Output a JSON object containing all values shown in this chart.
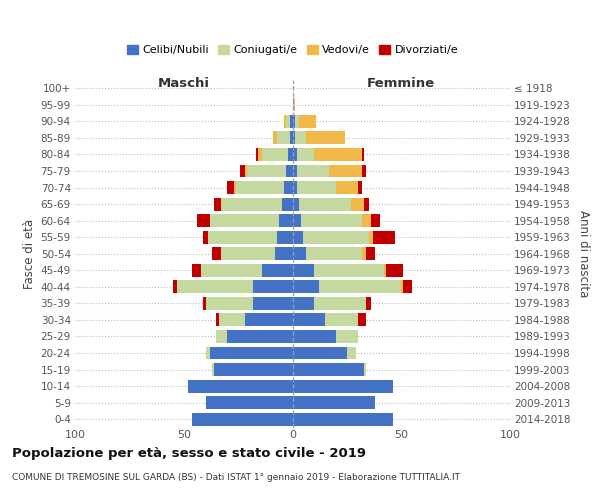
{
  "age_groups": [
    "0-4",
    "5-9",
    "10-14",
    "15-19",
    "20-24",
    "25-29",
    "30-34",
    "35-39",
    "40-44",
    "45-49",
    "50-54",
    "55-59",
    "60-64",
    "65-69",
    "70-74",
    "75-79",
    "80-84",
    "85-89",
    "90-94",
    "95-99",
    "100+"
  ],
  "birth_years": [
    "2014-2018",
    "2009-2013",
    "2004-2008",
    "1999-2003",
    "1994-1998",
    "1989-1993",
    "1984-1988",
    "1979-1983",
    "1974-1978",
    "1969-1973",
    "1964-1968",
    "1959-1963",
    "1954-1958",
    "1949-1953",
    "1944-1948",
    "1939-1943",
    "1934-1938",
    "1929-1933",
    "1924-1928",
    "1919-1923",
    "≤ 1918"
  ],
  "maschi": {
    "celibi": [
      46,
      40,
      48,
      36,
      38,
      30,
      22,
      18,
      18,
      14,
      8,
      7,
      6,
      5,
      4,
      3,
      2,
      1,
      1,
      0,
      0
    ],
    "coniugati": [
      0,
      0,
      0,
      1,
      2,
      5,
      12,
      22,
      35,
      28,
      25,
      32,
      32,
      28,
      22,
      18,
      12,
      6,
      2,
      0,
      0
    ],
    "vedovi": [
      0,
      0,
      0,
      0,
      0,
      0,
      0,
      0,
      0,
      0,
      0,
      0,
      0,
      0,
      1,
      1,
      2,
      2,
      1,
      0,
      0
    ],
    "divorziati": [
      0,
      0,
      0,
      0,
      0,
      0,
      1,
      1,
      2,
      4,
      4,
      2,
      6,
      3,
      3,
      2,
      1,
      0,
      0,
      0,
      0
    ]
  },
  "femmine": {
    "nubili": [
      46,
      38,
      46,
      33,
      25,
      20,
      15,
      10,
      12,
      10,
      6,
      5,
      4,
      3,
      2,
      2,
      2,
      1,
      1,
      0,
      0
    ],
    "coniugate": [
      0,
      0,
      0,
      1,
      4,
      10,
      15,
      24,
      38,
      32,
      26,
      30,
      28,
      24,
      18,
      15,
      8,
      5,
      2,
      0,
      0
    ],
    "vedove": [
      0,
      0,
      0,
      0,
      0,
      0,
      0,
      0,
      1,
      1,
      2,
      2,
      4,
      6,
      10,
      15,
      22,
      18,
      8,
      1,
      0
    ],
    "divorziate": [
      0,
      0,
      0,
      0,
      0,
      0,
      4,
      2,
      4,
      8,
      4,
      10,
      4,
      2,
      2,
      2,
      1,
      0,
      0,
      0,
      0
    ]
  },
  "colors": {
    "celibi": "#4472C4",
    "coniugati": "#c5d8a0",
    "vedovi": "#f0b848",
    "divorziati": "#c00000"
  },
  "xlim": 100,
  "title": "Popolazione per età, sesso e stato civile - 2019",
  "subtitle": "COMUNE DI TREMOSINE SUL GARDA (BS) - Dati ISTAT 1° gennaio 2019 - Elaborazione TUTTITALIA.IT",
  "ylabel_left": "Fasce di età",
  "ylabel_right": "Anni di nascita",
  "xlabel_left": "Maschi",
  "xlabel_right": "Femmine"
}
